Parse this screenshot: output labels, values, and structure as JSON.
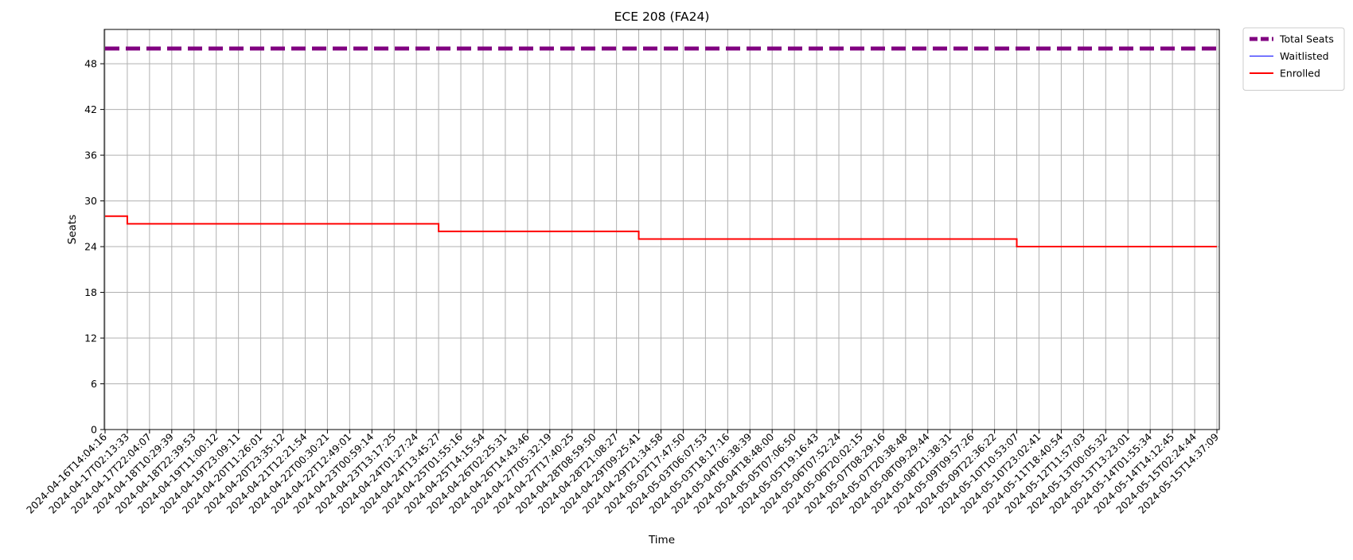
{
  "chart_data": {
    "type": "line",
    "title": "ECE 208 (FA24)",
    "xlabel": "Time",
    "ylabel": "Seats",
    "ylim": [
      0,
      52.5
    ],
    "yticks": [
      0,
      6,
      12,
      18,
      24,
      30,
      36,
      42,
      48
    ],
    "grid": true,
    "legend_position": "outside-top-right",
    "x_tick_labels": [
      "2024-04-16T14:04:16",
      "2024-04-17T02:13:33",
      "2024-04-17T22:04:07",
      "2024-04-18T10:29:39",
      "2024-04-18T22:39:53",
      "2024-04-19T11:00:12",
      "2024-04-19T23:09:11",
      "2024-04-20T11:26:01",
      "2024-04-20T23:35:12",
      "2024-04-21T12:21:54",
      "2024-04-22T00:30:21",
      "2024-04-22T12:49:01",
      "2024-04-23T00:59:14",
      "2024-04-23T13:17:25",
      "2024-04-24T01:27:24",
      "2024-04-24T13:45:27",
      "2024-04-25T01:55:16",
      "2024-04-25T14:15:54",
      "2024-04-26T02:25:31",
      "2024-04-26T14:43:46",
      "2024-04-27T05:32:19",
      "2024-04-27T17:40:25",
      "2024-04-28T08:59:50",
      "2024-04-28T21:08:27",
      "2024-04-29T09:25:41",
      "2024-04-29T21:34:58",
      "2024-05-02T17:47:50",
      "2024-05-03T06:07:53",
      "2024-05-03T18:17:16",
      "2024-05-04T06:38:39",
      "2024-05-04T18:48:00",
      "2024-05-05T07:06:50",
      "2024-05-05T19:16:43",
      "2024-05-06T07:52:24",
      "2024-05-06T20:02:15",
      "2024-05-07T08:29:16",
      "2024-05-07T20:38:48",
      "2024-05-08T09:29:44",
      "2024-05-08T21:38:31",
      "2024-05-09T09:57:26",
      "2024-05-09T22:36:22",
      "2024-05-10T10:53:07",
      "2024-05-10T23:02:41",
      "2024-05-11T18:40:54",
      "2024-05-12T11:57:03",
      "2024-05-13T00:05:32",
      "2024-05-13T13:23:01",
      "2024-05-14T01:55:34",
      "2024-05-14T14:12:45",
      "2024-05-15T02:24:44",
      "2024-05-15T14:37:09"
    ],
    "series": [
      {
        "name": "Total Seats",
        "color": "#800080",
        "style": "dashed",
        "width": 5,
        "steps": [
          {
            "from": "2024-04-16T14:04:16",
            "value": 50
          }
        ]
      },
      {
        "name": "Waitlisted",
        "color": "#0000ff",
        "style": "solid",
        "width": 1,
        "steps": [
          {
            "from": "2024-04-16T14:04:16",
            "value": 0
          }
        ]
      },
      {
        "name": "Enrolled",
        "color": "#ff0000",
        "style": "solid",
        "width": 2,
        "steps": [
          {
            "from": "2024-04-16T14:04:16",
            "value": 28
          },
          {
            "from": "2024-04-17T02:13:33",
            "value": 27
          },
          {
            "from": "2024-04-24T13:45:27",
            "value": 26
          },
          {
            "from": "2024-04-29T09:25:41",
            "value": 25
          },
          {
            "from": "2024-05-10T10:53:07",
            "value": 24
          }
        ]
      }
    ],
    "x_end": "2024-05-15T14:37:09"
  }
}
